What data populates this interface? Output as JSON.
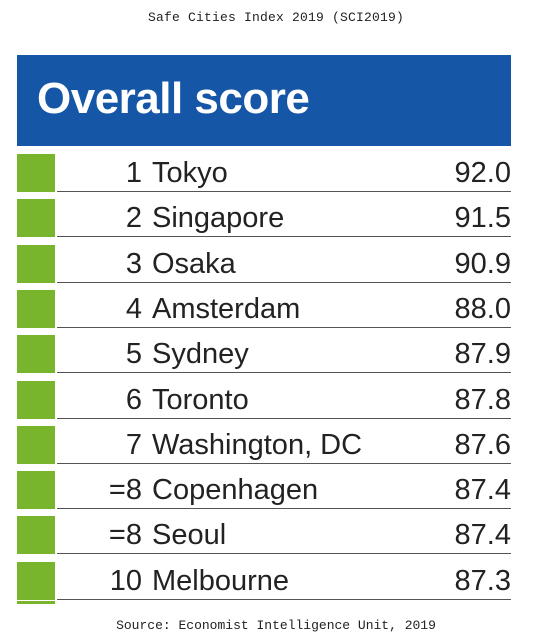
{
  "page": {
    "title": "Safe Cities Index 2019 (SCI2019)",
    "source": "Source: Economist Intelligence Unit, 2019"
  },
  "chart_data": {
    "type": "table",
    "title": "Overall score",
    "columns": [
      "rank",
      "city",
      "score"
    ],
    "rows": [
      {
        "rank": "1",
        "city": "Tokyo",
        "score": "92.0"
      },
      {
        "rank": "2",
        "city": "Singapore",
        "score": "91.5"
      },
      {
        "rank": "3",
        "city": "Osaka",
        "score": "90.9"
      },
      {
        "rank": "4",
        "city": "Amsterdam",
        "score": "88.0"
      },
      {
        "rank": "5",
        "city": "Sydney",
        "score": "87.9"
      },
      {
        "rank": "6",
        "city": "Toronto",
        "score": "87.8"
      },
      {
        "rank": "7",
        "city": "Washington, DC",
        "score": "87.6"
      },
      {
        "rank": "=8",
        "city": "Copenhagen",
        "score": "87.4"
      },
      {
        "rank": "=8",
        "city": "Seoul",
        "score": "87.4"
      },
      {
        "rank": "10",
        "city": "Melbourne",
        "score": "87.3"
      }
    ]
  },
  "colors": {
    "header_band": "#1557a6",
    "swatch": "#79b42d",
    "text": "#222222",
    "rule": "#555555"
  }
}
